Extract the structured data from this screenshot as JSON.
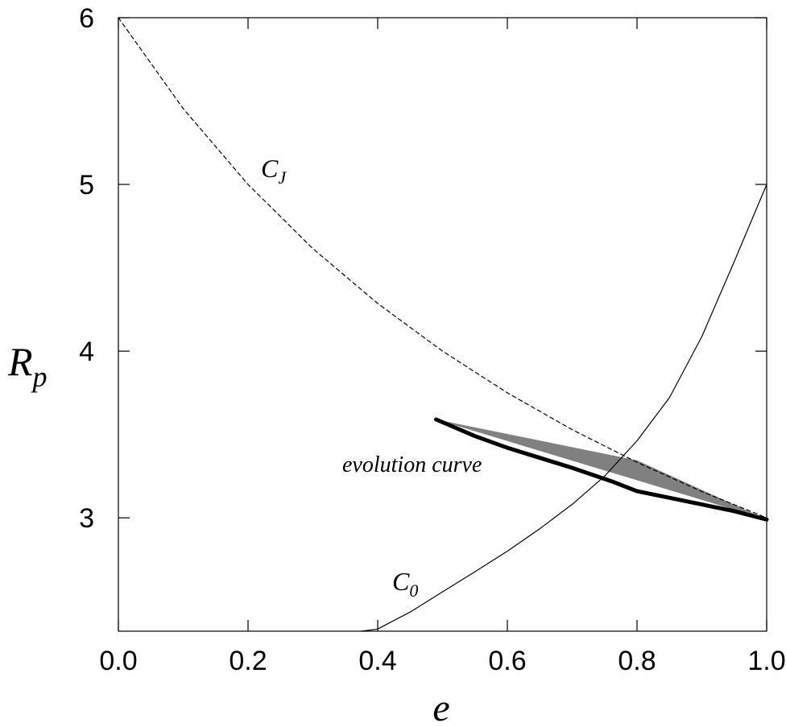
{
  "chart_data": {
    "type": "line",
    "title": "",
    "xlabel": "e",
    "ylabel_main": "R",
    "ylabel_sub": "p",
    "xlim": [
      0.0,
      1.0
    ],
    "ylim": [
      2.32,
      6.0
    ],
    "x_ticks": [
      0.0,
      0.2,
      0.4,
      0.6,
      0.8,
      1.0
    ],
    "x_tick_labels": [
      "0.0",
      "0.2",
      "0.4",
      "0.6",
      "0.8",
      "1.0"
    ],
    "y_ticks": [
      3,
      4,
      5,
      6
    ],
    "y_tick_labels": [
      "3",
      "4",
      "5",
      "6"
    ],
    "grid": false,
    "annotations": {
      "cj_main": "C",
      "cj_sub": "J",
      "c0_main": "C",
      "c0_sub": "0",
      "evolution": "evolution curve"
    },
    "series": [
      {
        "style": "dashed",
        "x": [
          0.0,
          0.1,
          0.2,
          0.3,
          0.4,
          0.5,
          0.6,
          0.7,
          0.8,
          0.9,
          1.0
        ],
        "y": [
          6.0,
          5.455,
          5.0,
          4.615,
          4.286,
          4.0,
          3.75,
          3.529,
          3.333,
          3.158,
          3.0
        ]
      },
      {
        "style": "thin",
        "x": [
          0.375,
          0.4,
          0.45,
          0.5,
          0.55,
          0.6,
          0.65,
          0.7,
          0.75,
          0.8,
          0.85,
          0.9,
          0.95,
          1.0
        ],
        "y": [
          2.32,
          2.333,
          2.435,
          2.556,
          2.677,
          2.8,
          2.935,
          3.081,
          3.25,
          3.462,
          3.721,
          4.087,
          4.538,
          5.0
        ]
      },
      {
        "style": "thick",
        "x": [
          0.49,
          0.55,
          0.6,
          0.65,
          0.7,
          0.76,
          0.8,
          0.85,
          0.9,
          0.95,
          1.0
        ],
        "y": [
          3.59,
          3.49,
          3.42,
          3.36,
          3.3,
          3.22,
          3.16,
          3.12,
          3.08,
          3.04,
          2.99
        ]
      }
    ],
    "shaded_region": {
      "x": [
        0.49,
        0.8,
        1.0
      ],
      "y": [
        3.59,
        3.345,
        2.99
      ]
    }
  }
}
